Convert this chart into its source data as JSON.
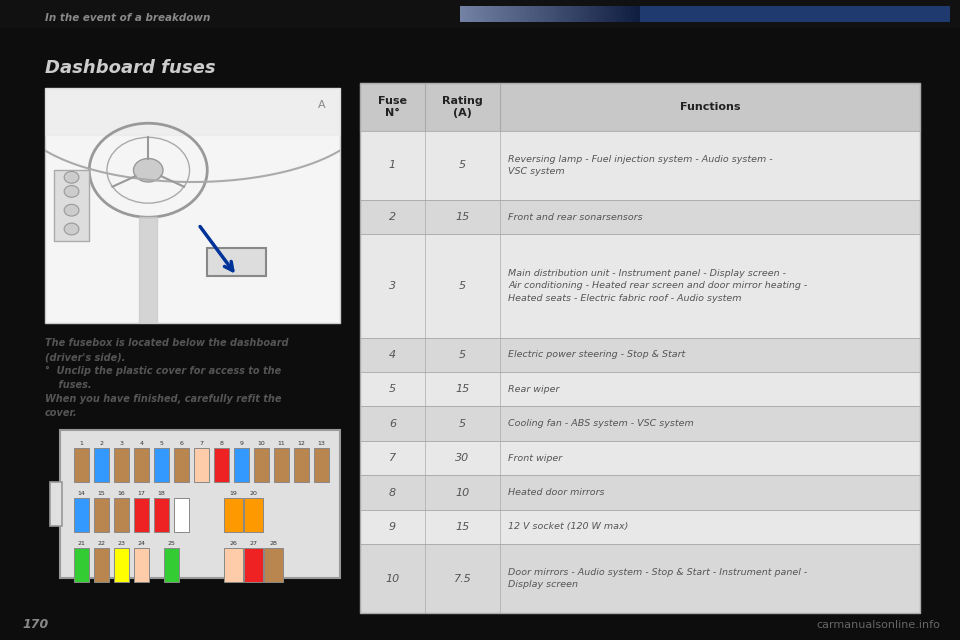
{
  "bg_color": "#0d0d0d",
  "content_bg": "#f0f0f0",
  "header_text": "In the event of a breakdown",
  "header_color": "#888888",
  "header_bar_left": "#d0d0d0",
  "header_bar_right": "#1e3a6e",
  "title": "Dashboard fuses",
  "title_color": "#cccccc",
  "body_text_color": "#555555",
  "body_texts": [
    "The fusebox is located below the dashboard",
    "(driver's side).",
    "°  Unclip the plastic cover for access to the",
    "    fuses.",
    "When you have finished, carefully refit the",
    "cover."
  ],
  "table_header_bg": "#c8c8c8",
  "table_row_bg_1": "#e8e8e8",
  "table_row_bg_2": "#d8d8d8",
  "table_border_color": "#aaaaaa",
  "table_header_text_color": "#222222",
  "table_text_color": "#555555",
  "fuse_data": [
    [
      "1",
      "5",
      "Reversing lamp - Fuel injection system - Audio system -\nVSC system"
    ],
    [
      "2",
      "15",
      "Front and rear sonarsensors"
    ],
    [
      "3",
      "5",
      "Main distribution unit - Instrument panel - Display screen -\nAir conditioning - Heated rear screen and door mirror heating -\nHeated seats - Electric fabric roof - Audio system"
    ],
    [
      "4",
      "5",
      "Electric power steering - Stop & Start"
    ],
    [
      "5",
      "15",
      "Rear wiper"
    ],
    [
      "6",
      "5",
      "Cooling fan - ABS system - VSC system"
    ],
    [
      "7",
      "30",
      "Front wiper"
    ],
    [
      "8",
      "10",
      "Heated door mirrors"
    ],
    [
      "9",
      "15",
      "12 V socket (120 W max)"
    ],
    [
      "10",
      "7.5",
      "Door mirrors - Audio system - Stop & Start - Instrument panel -\nDisplay screen"
    ]
  ],
  "page_number": "170",
  "watermark": "carmanualsonline.info",
  "fuse_box_bg": "#e0e0e0",
  "fuse_row1_colors": [
    "#b8864e",
    "#3399ff",
    "#b8864e",
    "#b8864e",
    "#3399ff",
    "#b8864e",
    "#ffccaa",
    "#ee2222",
    "#3399ff",
    "#b8864e",
    "#b8864e",
    "#b8864e",
    "#b8864e"
  ],
  "fuse_row2_colors": [
    "#3399ff",
    "#b8864e",
    "#b8864e",
    "#ee2222",
    "#ee2222",
    "#ffffff",
    "#ff9900",
    "#ff9900"
  ],
  "fuse_row3_colors": [
    "#33cc33",
    "#b8864e",
    "#ffff00",
    "#ffccaa",
    "#33cc33",
    "#ffccaa",
    "#ee2222",
    "#b8864e"
  ]
}
